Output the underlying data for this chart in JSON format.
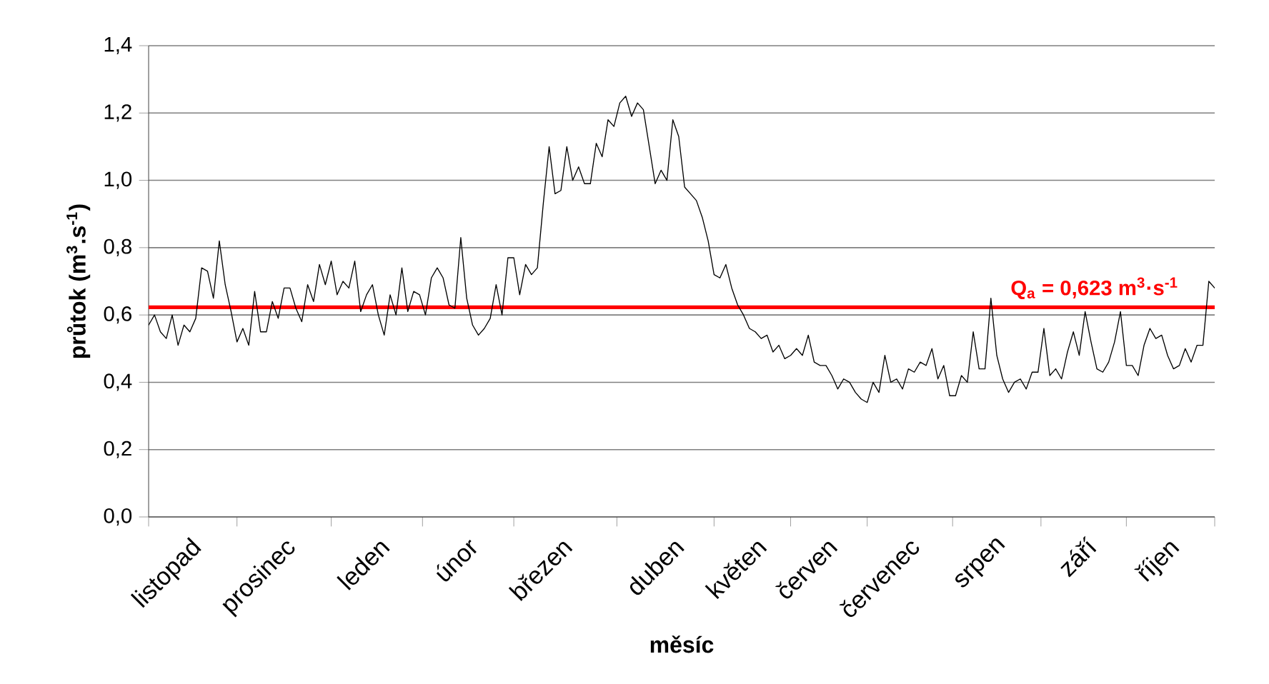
{
  "chart_data": {
    "type": "line",
    "xlabel": "měsíc",
    "ylabel": "průtok (m$^{3}$.s$^{-1}$)",
    "categories": [
      null,
      null,
      null,
      null,
      null,
      null,
      null,
      "listopad",
      null,
      null,
      null,
      null,
      null,
      null,
      null,
      null,
      null,
      null,
      null,
      null,
      null,
      null,
      null,
      "prosinec",
      null,
      null,
      null,
      null,
      null,
      null,
      null,
      null,
      null,
      null,
      null,
      null,
      null,
      null,
      null,
      "leden",
      null,
      null,
      null,
      null,
      null,
      null,
      null,
      null,
      null,
      null,
      null,
      null,
      null,
      null,
      "únor",
      null,
      null,
      null,
      null,
      null,
      null,
      null,
      null,
      null,
      null,
      null,
      null,
      null,
      null,
      null,
      "březen",
      null,
      null,
      null,
      null,
      null,
      null,
      null,
      null,
      null,
      null,
      null,
      null,
      null,
      null,
      null,
      null,
      null,
      null,
      "duben",
      null,
      null,
      null,
      null,
      null,
      null,
      null,
      null,
      null,
      null,
      null,
      null,
      null,
      "květen",
      null,
      null,
      null,
      null,
      null,
      null,
      null,
      null,
      null,
      null,
      null,
      "červen",
      null,
      null,
      null,
      null,
      null,
      null,
      null,
      null,
      null,
      null,
      null,
      null,
      null,
      "červenec",
      null,
      null,
      null,
      null,
      null,
      null,
      null,
      null,
      null,
      null,
      null,
      null,
      null,
      null,
      "srpen",
      null,
      null,
      null,
      null,
      null,
      null,
      null,
      null,
      null,
      null,
      null,
      null,
      null,
      null,
      "září",
      null,
      null,
      null,
      null,
      null,
      null,
      null,
      null,
      null,
      null,
      null,
      null,
      null,
      "říjen",
      null,
      null,
      null,
      null,
      null,
      null,
      null,
      null
    ],
    "ylim": [
      0,
      1.4
    ],
    "yticks": [
      {
        "value": 0,
        "label": "0,0"
      },
      {
        "value": 0.2,
        "label": "0,2"
      },
      {
        "value": 0.4,
        "label": "0,4"
      },
      {
        "value": 0.6,
        "label": "0,6"
      },
      {
        "value": 0.8,
        "label": "0,8"
      },
      {
        "value": 1.0,
        "label": "1,0"
      },
      {
        "value": 1.2,
        "label": "1,2"
      },
      {
        "value": 1.4,
        "label": "1,4"
      }
    ],
    "grid": "y",
    "marker": "none",
    "line_style": "solid",
    "ref_lines": [
      {
        "axis": "y",
        "value": 0.623,
        "label": "Q$_{a}$ = 0,623 m$^{3}$·s$^{-1}$",
        "color": "#ff0000"
      }
    ],
    "series": [
      {
        "color": "#000000",
        "values": [
          0.57,
          0.6,
          0.55,
          0.53,
          0.6,
          0.51,
          0.57,
          0.55,
          0.59,
          0.74,
          0.73,
          0.65,
          0.82,
          0.69,
          0.61,
          0.52,
          0.56,
          0.51,
          0.67,
          0.55,
          0.55,
          0.64,
          0.59,
          0.68,
          0.68,
          0.62,
          0.58,
          0.69,
          0.64,
          0.75,
          0.69,
          0.76,
          0.66,
          0.7,
          0.68,
          0.76,
          0.61,
          0.66,
          0.69,
          0.6,
          0.54,
          0.66,
          0.6,
          0.74,
          0.61,
          0.67,
          0.66,
          0.6,
          0.71,
          0.74,
          0.71,
          0.63,
          0.62,
          0.83,
          0.65,
          0.57,
          0.54,
          0.56,
          0.59,
          0.69,
          0.6,
          0.77,
          0.77,
          0.66,
          0.75,
          0.72,
          0.74,
          0.93,
          1.1,
          0.96,
          0.97,
          1.1,
          1.0,
          1.04,
          0.99,
          0.99,
          1.11,
          1.07,
          1.18,
          1.16,
          1.23,
          1.25,
          1.19,
          1.23,
          1.21,
          1.1,
          0.99,
          1.03,
          1.0,
          1.18,
          1.13,
          0.98,
          0.96,
          0.94,
          0.89,
          0.82,
          0.72,
          0.71,
          0.75,
          0.68,
          0.63,
          0.6,
          0.56,
          0.55,
          0.53,
          0.54,
          0.49,
          0.51,
          0.47,
          0.48,
          0.5,
          0.48,
          0.54,
          0.46,
          0.45,
          0.45,
          0.42,
          0.38,
          0.41,
          0.4,
          0.37,
          0.35,
          0.34,
          0.4,
          0.37,
          0.48,
          0.4,
          0.41,
          0.38,
          0.44,
          0.43,
          0.46,
          0.45,
          0.5,
          0.41,
          0.45,
          0.36,
          0.36,
          0.42,
          0.4,
          0.55,
          0.44,
          0.44,
          0.65,
          0.48,
          0.41,
          0.37,
          0.4,
          0.41,
          0.38,
          0.43,
          0.43,
          0.56,
          0.42,
          0.44,
          0.41,
          0.49,
          0.55,
          0.48,
          0.61,
          0.52,
          0.44,
          0.43,
          0.46,
          0.52,
          0.61,
          0.45,
          0.45,
          0.42,
          0.51,
          0.56,
          0.53,
          0.54,
          0.48,
          0.44,
          0.45,
          0.5,
          0.46,
          0.51,
          0.51,
          0.7,
          0.68
        ]
      }
    ]
  }
}
